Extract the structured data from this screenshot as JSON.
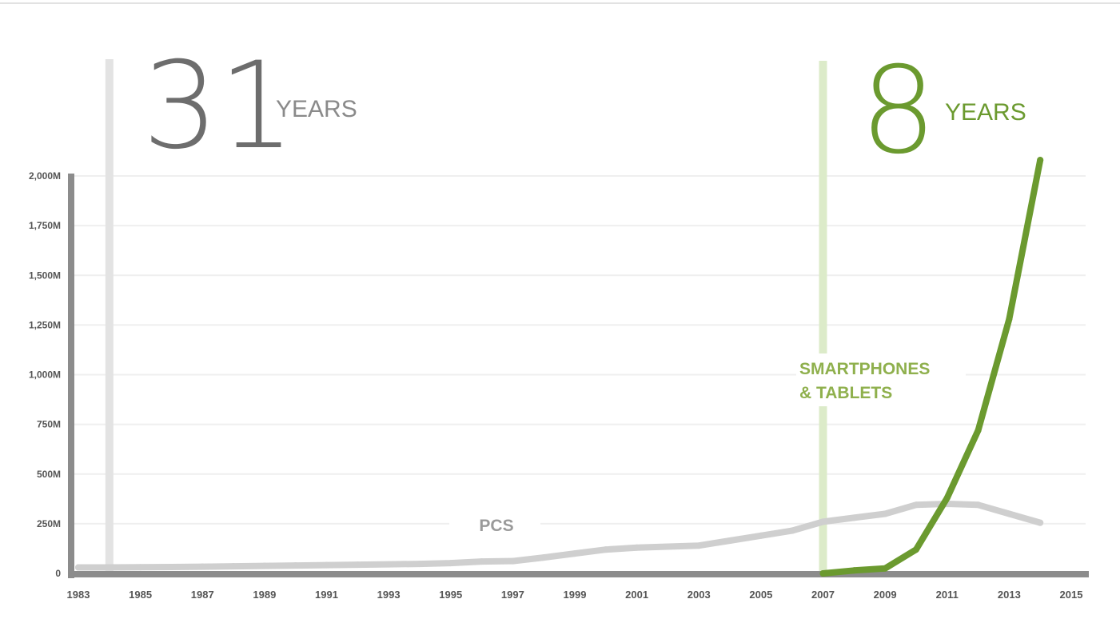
{
  "chart_data": {
    "type": "line",
    "x": [
      1983,
      1984,
      1985,
      1986,
      1987,
      1988,
      1989,
      1990,
      1991,
      1992,
      1993,
      1994,
      1995,
      1996,
      1997,
      1998,
      1999,
      2000,
      2001,
      2002,
      2003,
      2004,
      2005,
      2006,
      2007,
      2008,
      2009,
      2010,
      2011,
      2012,
      2013,
      2014
    ],
    "series": [
      {
        "name": "PCS",
        "color": "#cfcfcf",
        "x": [
          1983,
          1984,
          1985,
          1986,
          1987,
          1988,
          1989,
          1990,
          1991,
          1992,
          1993,
          1994,
          1995,
          1996,
          1997,
          1998,
          1999,
          2000,
          2001,
          2002,
          2003,
          2004,
          2005,
          2006,
          2007,
          2008,
          2009,
          2010,
          2011,
          2012,
          2013,
          2014
        ],
        "values": [
          30,
          30,
          31,
          32,
          34,
          36,
          38,
          40,
          42,
          44,
          46,
          48,
          52,
          60,
          62,
          80,
          100,
          120,
          130,
          135,
          140,
          165,
          190,
          215,
          260,
          280,
          300,
          345,
          350,
          345,
          300,
          255
        ]
      },
      {
        "name": "SMARTPHONES & TABLETS",
        "color": "#6b9a2f",
        "x": [
          2007,
          2008,
          2009,
          2010,
          2011,
          2012,
          2013,
          2014
        ],
        "values": [
          0,
          15,
          25,
          120,
          380,
          720,
          1280,
          2080
        ]
      }
    ],
    "xticks": [
      "1983",
      "1985",
      "1987",
      "1989",
      "1991",
      "1993",
      "1995",
      "1997",
      "1999",
      "2001",
      "2003",
      "2005",
      "2007",
      "2009",
      "2011",
      "2013",
      "2015"
    ],
    "yticks": [
      {
        "value": 0,
        "label": "0"
      },
      {
        "value": 250,
        "label": "250M"
      },
      {
        "value": 500,
        "label": "500M"
      },
      {
        "value": 750,
        "label": "750M"
      },
      {
        "value": 1000,
        "label": "1,000M"
      },
      {
        "value": 1250,
        "label": "1,250M"
      },
      {
        "value": 1500,
        "label": "1,500M"
      },
      {
        "value": 1750,
        "label": "1,750M"
      },
      {
        "value": 2000,
        "label": "2,000M"
      }
    ],
    "xlim": [
      1983,
      2015
    ],
    "ylim": [
      0,
      2000
    ],
    "grid": true,
    "annotations": {
      "pc_span": {
        "start_year": 1984,
        "number": "31",
        "word": "YEARS",
        "color": "#6d6d6d",
        "bar_color": "#e3e3e3"
      },
      "mobile_span": {
        "start_year": 2007,
        "number": "8",
        "word": "YEARS",
        "color": "#6b9a2f",
        "bar_color": "#dcebc9"
      },
      "pcs_label": "PCS",
      "mobile_label_line1": "SMARTPHONES",
      "mobile_label_line2": "& TABLETS"
    }
  }
}
